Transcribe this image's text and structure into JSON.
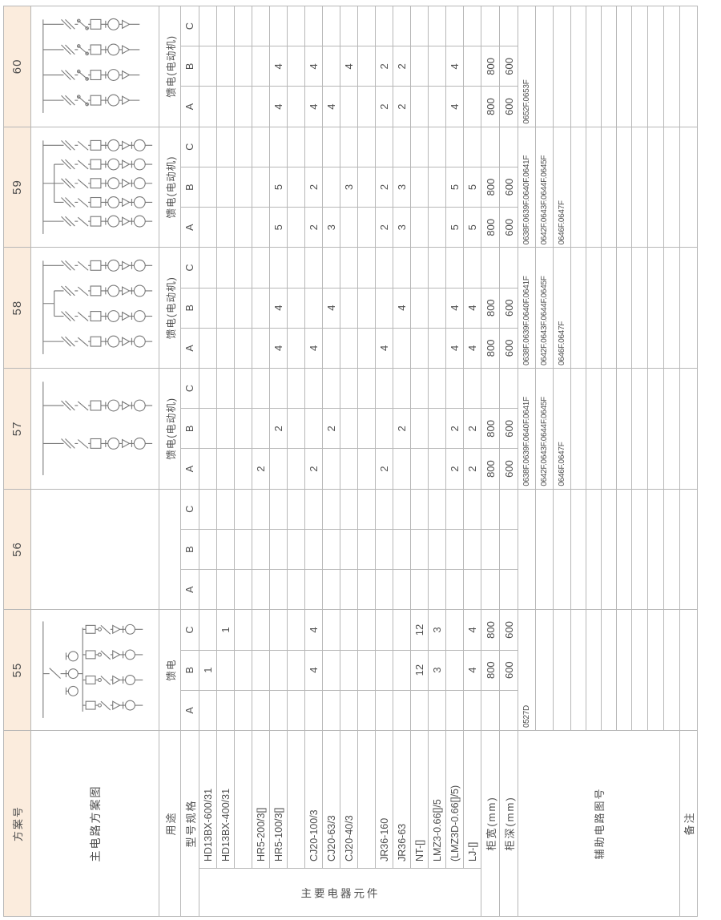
{
  "document": {
    "type": "low-voltage-switchgear-scheme-table"
  },
  "colors": {
    "pink": "#fbecdd",
    "border": "#b7b7b7",
    "text": "#4f4f4f",
    "line": "#787878"
  },
  "labels": {
    "scheme_no": "方案号",
    "main_circuit": "主电路方案图",
    "usage": "用途",
    "model_spec": "型号规格",
    "main_components": "主要电器元件",
    "cabinet_width": "柜宽(mm)",
    "cabinet_depth": "柜深(mm)",
    "aux_circuit": "辅助电路图号",
    "remarks": "备注"
  },
  "subcols": [
    "A",
    "B",
    "C"
  ],
  "scheme_ids": [
    "55",
    "56",
    "57",
    "58",
    "59",
    "60"
  ],
  "usage_values": {
    "55": "馈电",
    "56": "",
    "57": "馈电(电动机)",
    "58": "馈电(电动机)",
    "59": "馈电(电动机)",
    "60": "馈电(电动机)"
  },
  "component_rows": [
    {
      "label": "HD13BX-600/31",
      "values": {
        "55": [
          "",
          "1",
          ""
        ]
      }
    },
    {
      "label": "HD13BX-400/31",
      "values": {
        "55": [
          "",
          "",
          "1"
        ]
      }
    },
    {
      "label": "",
      "blank": true,
      "values": {}
    },
    {
      "label": "HR5-200/3[]",
      "values": {
        "57": [
          "2",
          "",
          ""
        ]
      }
    },
    {
      "label": "HR5-100/3[]",
      "values": {
        "57": [
          "",
          "2",
          ""
        ],
        "58": [
          "4",
          "4",
          ""
        ],
        "59": [
          "5",
          "5",
          ""
        ],
        "60": [
          "4",
          "4",
          ""
        ]
      }
    },
    {
      "label": "",
      "blank": true,
      "values": {}
    },
    {
      "label": "CJ20-100/3",
      "values": {
        "55": [
          "",
          "4",
          "4"
        ],
        "57": [
          "2",
          "",
          ""
        ],
        "58": [
          "4",
          "",
          ""
        ],
        "59": [
          "2",
          "2",
          ""
        ],
        "60": [
          "4",
          "4",
          ""
        ]
      }
    },
    {
      "label": "CJ20-63/3",
      "values": {
        "57": [
          "",
          "2",
          ""
        ],
        "58": [
          "",
          "4",
          ""
        ],
        "59": [
          "3",
          "",
          ""
        ],
        "60": [
          "4",
          "",
          ""
        ]
      }
    },
    {
      "label": "CJ20-40/3",
      "values": {
        "59": [
          "",
          "3",
          ""
        ],
        "60": [
          "",
          "4",
          ""
        ]
      }
    },
    {
      "label": "",
      "blank": true,
      "values": {}
    },
    {
      "label": "JR36-160",
      "values": {
        "57": [
          "2",
          "",
          ""
        ],
        "58": [
          "4",
          "",
          ""
        ],
        "59": [
          "2",
          "2",
          ""
        ],
        "60": [
          "2",
          "2",
          ""
        ]
      }
    },
    {
      "label": "JR36-63",
      "values": {
        "57": [
          "",
          "2",
          ""
        ],
        "58": [
          "",
          "4",
          ""
        ],
        "59": [
          "3",
          "3",
          ""
        ],
        "60": [
          "2",
          "2",
          ""
        ]
      }
    },
    {
      "label": "NT-[]",
      "values": {
        "55": [
          "",
          "12",
          "12"
        ]
      }
    },
    {
      "label": "LMZ3-0.66[]/5",
      "values": {
        "55": [
          "",
          "3",
          "3"
        ]
      }
    },
    {
      "label": "(LMZ3D-0.66[]/5)",
      "values": {
        "57": [
          "2",
          "2",
          ""
        ],
        "58": [
          "4",
          "4",
          ""
        ],
        "59": [
          "5",
          "5",
          ""
        ],
        "60": [
          "4",
          "4",
          ""
        ]
      }
    },
    {
      "label": "LJ-[]",
      "values": {
        "55": [
          "",
          "4",
          "4"
        ],
        "57": [
          "2",
          "2",
          ""
        ],
        "58": [
          "4",
          "4",
          ""
        ],
        "59": [
          "5",
          "5",
          ""
        ]
      }
    }
  ],
  "cabinet_width_values": {
    "55": [
      "",
      "800",
      "800"
    ],
    "57": [
      "800",
      "800",
      ""
    ],
    "58": [
      "800",
      "800",
      ""
    ],
    "59": [
      "800",
      "800",
      ""
    ],
    "60": [
      "800",
      "800",
      ""
    ]
  },
  "cabinet_depth_values": {
    "55": [
      "",
      "600",
      "600"
    ],
    "57": [
      "600",
      "600",
      ""
    ],
    "58": [
      "600",
      "600",
      ""
    ],
    "59": [
      "600",
      "600",
      ""
    ],
    "60": [
      "600",
      "600",
      ""
    ]
  },
  "aux_values": {
    "55": [
      "0527D"
    ],
    "56": [],
    "57": [
      "0638F.0639F.0640F.0641F",
      "0642F.0643F.0644F.0645F",
      "0646F.0647F"
    ],
    "58": [
      "0638F.0639F.0640F.0641F",
      "0642F.0643F.0644F.0645F",
      "0646F.0647F"
    ],
    "59": [
      "0638F.0639F.0640F.0641F",
      "0642F.0643F.0644F.0645F",
      "0646F.0647F"
    ],
    "60": [
      "0652F.0653F"
    ]
  },
  "diagrams": {
    "55": {
      "kind": "feeder",
      "circuits": 4
    },
    "56": {
      "kind": "none",
      "circuits": 0
    },
    "57": {
      "kind": "motor",
      "circuits": 2,
      "tail_meter": true
    },
    "58": {
      "kind": "motor",
      "circuits": 4,
      "fork": [
        1,
        2
      ],
      "tail_meter": true
    },
    "59": {
      "kind": "motor",
      "circuits": 5,
      "fork": [
        1,
        3
      ],
      "tail_meter": true
    },
    "60": {
      "kind": "motor",
      "circuits": 4,
      "pair_contact": true,
      "tail_meter": false
    }
  }
}
